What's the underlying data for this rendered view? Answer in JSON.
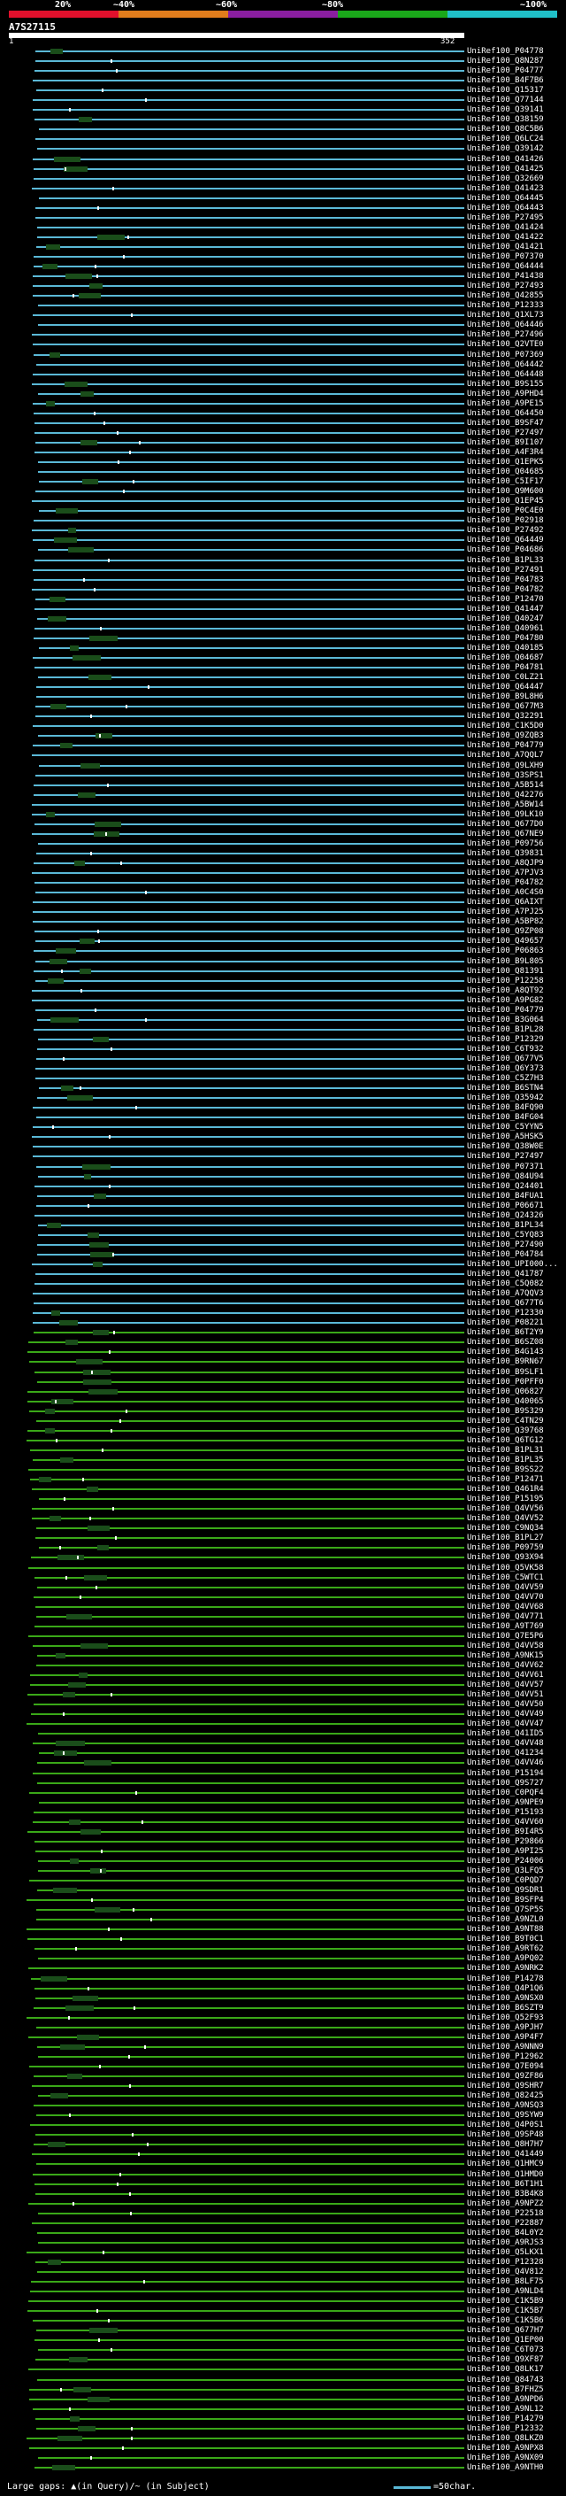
{
  "scale": {
    "ticks": [
      "20%",
      "~40%",
      "~60%",
      "~80%",
      "~100%"
    ],
    "colors": [
      "#e0102c",
      "#e07c1c",
      "#8a1ea0",
      "#1aa81a",
      "#20c0c8"
    ]
  },
  "query": {
    "id": "A7S27115",
    "start": "1",
    "end": "352"
  },
  "line_colors": {
    "cyan": "#5ab8d6",
    "green": "#3aa818",
    "dark": "#1a4d1a"
  },
  "hits": [
    {
      "id": "UniRef100_P04778",
      "c": "cyan"
    },
    {
      "id": "UniRef100_Q8N287",
      "c": "cyan"
    },
    {
      "id": "UniRef100_P04777",
      "c": "cyan"
    },
    {
      "id": "UniRef100_B4F7B6",
      "c": "cyan"
    },
    {
      "id": "UniRef100_Q15317",
      "c": "cyan"
    },
    {
      "id": "UniRef100_Q77144",
      "c": "cyan"
    },
    {
      "id": "UniRef100_Q39141",
      "c": "cyan"
    },
    {
      "id": "UniRef100_Q38159",
      "c": "cyan"
    },
    {
      "id": "UniRef100_Q8C5B6",
      "c": "cyan"
    },
    {
      "id": "UniRef100_Q6LC24",
      "c": "cyan"
    },
    {
      "id": "UniRef100_Q39142",
      "c": "cyan"
    },
    {
      "id": "UniRef100_Q41426",
      "c": "cyan"
    },
    {
      "id": "UniRef100_Q41425",
      "c": "cyan"
    },
    {
      "id": "UniRef100_Q32669",
      "c": "cyan"
    },
    {
      "id": "UniRef100_Q41423",
      "c": "cyan"
    },
    {
      "id": "UniRef100_Q64445",
      "c": "cyan"
    },
    {
      "id": "UniRef100_Q64443",
      "c": "cyan"
    },
    {
      "id": "UniRef100_P27495",
      "c": "cyan"
    },
    {
      "id": "UniRef100_Q41424",
      "c": "cyan"
    },
    {
      "id": "UniRef100_Q41422",
      "c": "cyan"
    },
    {
      "id": "UniRef100_Q41421",
      "c": "cyan"
    },
    {
      "id": "UniRef100_P07370",
      "c": "cyan"
    },
    {
      "id": "UniRef100_Q64444",
      "c": "cyan"
    },
    {
      "id": "UniRef100_P41438",
      "c": "cyan"
    },
    {
      "id": "UniRef100_P27493",
      "c": "cyan"
    },
    {
      "id": "UniRef100_Q42855",
      "c": "cyan"
    },
    {
      "id": "UniRef100_P12333",
      "c": "cyan"
    },
    {
      "id": "UniRef100_Q1XL73",
      "c": "cyan"
    },
    {
      "id": "UniRef100_Q64446",
      "c": "cyan"
    },
    {
      "id": "UniRef100_P27496",
      "c": "cyan"
    },
    {
      "id": "UniRef100_Q2VTE0",
      "c": "cyan"
    },
    {
      "id": "UniRef100_P07369",
      "c": "cyan"
    },
    {
      "id": "UniRef100_Q64442",
      "c": "cyan"
    },
    {
      "id": "UniRef100_Q64448",
      "c": "cyan"
    },
    {
      "id": "UniRef100_B9S155",
      "c": "cyan"
    },
    {
      "id": "UniRef100_A9PHD4",
      "c": "cyan"
    },
    {
      "id": "UniRef100_A9PE15",
      "c": "cyan"
    },
    {
      "id": "UniRef100_Q64450",
      "c": "cyan"
    },
    {
      "id": "UniRef100_B9SF47",
      "c": "cyan"
    },
    {
      "id": "UniRef100_P27497",
      "c": "cyan"
    },
    {
      "id": "UniRef100_B9I107",
      "c": "cyan"
    },
    {
      "id": "UniRef100_A4F3R4",
      "c": "cyan"
    },
    {
      "id": "UniRef100_Q1EPK5",
      "c": "cyan"
    },
    {
      "id": "UniRef100_Q04685",
      "c": "cyan"
    },
    {
      "id": "UniRef100_C5IF17",
      "c": "cyan"
    },
    {
      "id": "UniRef100_Q9M600",
      "c": "cyan"
    },
    {
      "id": "UniRef100_Q1EP45",
      "c": "cyan"
    },
    {
      "id": "UniRef100_P0C4E0",
      "c": "cyan"
    },
    {
      "id": "UniRef100_P02918",
      "c": "cyan"
    },
    {
      "id": "UniRef100_P27492",
      "c": "cyan"
    },
    {
      "id": "UniRef100_Q64449",
      "c": "cyan"
    },
    {
      "id": "UniRef100_P04686",
      "c": "cyan"
    },
    {
      "id": "UniRef100_B1PL33",
      "c": "cyan"
    },
    {
      "id": "UniRef100_P27491",
      "c": "cyan"
    },
    {
      "id": "UniRef100_P04783",
      "c": "cyan"
    },
    {
      "id": "UniRef100_P04782",
      "c": "cyan"
    },
    {
      "id": "UniRef100_P12470",
      "c": "cyan"
    },
    {
      "id": "UniRef100_Q41447",
      "c": "cyan"
    },
    {
      "id": "UniRef100_Q40247",
      "c": "cyan"
    },
    {
      "id": "UniRef100_Q40961",
      "c": "cyan"
    },
    {
      "id": "UniRef100_P04780",
      "c": "cyan"
    },
    {
      "id": "UniRef100_Q40185",
      "c": "cyan"
    },
    {
      "id": "UniRef100_Q04687",
      "c": "cyan"
    },
    {
      "id": "UniRef100_P04781",
      "c": "cyan"
    },
    {
      "id": "UniRef100_C0LZ21",
      "c": "cyan"
    },
    {
      "id": "UniRef100_Q64447",
      "c": "cyan"
    },
    {
      "id": "UniRef100_B9L8H6",
      "c": "cyan"
    },
    {
      "id": "UniRef100_Q677M3",
      "c": "cyan"
    },
    {
      "id": "UniRef100_Q32291",
      "c": "cyan"
    },
    {
      "id": "UniRef100_C1K5D0",
      "c": "cyan"
    },
    {
      "id": "UniRef100_Q9ZQB3",
      "c": "cyan"
    },
    {
      "id": "UniRef100_P04779",
      "c": "cyan"
    },
    {
      "id": "UniRef100_A7QQL7",
      "c": "cyan"
    },
    {
      "id": "UniRef100_Q9LXH9",
      "c": "cyan"
    },
    {
      "id": "UniRef100_Q3SPS1",
      "c": "cyan"
    },
    {
      "id": "UniRef100_A5B514",
      "c": "cyan"
    },
    {
      "id": "UniRef100_Q42276",
      "c": "cyan"
    },
    {
      "id": "UniRef100_A5BW14",
      "c": "cyan"
    },
    {
      "id": "UniRef100_Q9LK10",
      "c": "cyan"
    },
    {
      "id": "UniRef100_Q677D0",
      "c": "cyan"
    },
    {
      "id": "UniRef100_Q67NE9",
      "c": "cyan"
    },
    {
      "id": "UniRef100_P09756",
      "c": "cyan"
    },
    {
      "id": "UniRef100_Q39831",
      "c": "cyan"
    },
    {
      "id": "UniRef100_A8QJP9",
      "c": "cyan"
    },
    {
      "id": "UniRef100_A7PJV3",
      "c": "cyan"
    },
    {
      "id": "UniRef100_P04782",
      "c": "cyan"
    },
    {
      "id": "UniRef100_A0C4S0",
      "c": "cyan"
    },
    {
      "id": "UniRef100_Q6AIXT",
      "c": "cyan"
    },
    {
      "id": "UniRef100_A7PJ25",
      "c": "cyan"
    },
    {
      "id": "UniRef100_A5BP82",
      "c": "cyan"
    },
    {
      "id": "UniRef100_Q9ZP08",
      "c": "cyan"
    },
    {
      "id": "UniRef100_Q49657",
      "c": "cyan"
    },
    {
      "id": "UniRef100_P06863",
      "c": "cyan"
    },
    {
      "id": "UniRef100_B9L805",
      "c": "cyan"
    },
    {
      "id": "UniRef100_Q81391",
      "c": "cyan"
    },
    {
      "id": "UniRef100_P12258",
      "c": "cyan"
    },
    {
      "id": "UniRef100_A8QT92",
      "c": "cyan"
    },
    {
      "id": "UniRef100_A9PG82",
      "c": "cyan"
    },
    {
      "id": "UniRef100_P04779",
      "c": "cyan"
    },
    {
      "id": "UniRef100_B3G064",
      "c": "cyan"
    },
    {
      "id": "UniRef100_B1PL28",
      "c": "cyan"
    },
    {
      "id": "UniRef100_P12329",
      "c": "cyan"
    },
    {
      "id": "UniRef100_C6T932",
      "c": "cyan"
    },
    {
      "id": "UniRef100_Q677V5",
      "c": "cyan"
    },
    {
      "id": "UniRef100_Q6Y373",
      "c": "cyan"
    },
    {
      "id": "UniRef100_C5Z7H3",
      "c": "cyan"
    },
    {
      "id": "UniRef100_B6STN4",
      "c": "cyan"
    },
    {
      "id": "UniRef100_Q35942",
      "c": "cyan"
    },
    {
      "id": "UniRef100_B4FQ90",
      "c": "cyan"
    },
    {
      "id": "UniRef100_B4FG04",
      "c": "cyan"
    },
    {
      "id": "UniRef100_C5YYN5",
      "c": "cyan"
    },
    {
      "id": "UniRef100_A5HSK5",
      "c": "cyan"
    },
    {
      "id": "UniRef100_Q38W0E",
      "c": "cyan"
    },
    {
      "id": "UniRef100_P27497",
      "c": "cyan"
    },
    {
      "id": "UniRef100_P07371",
      "c": "cyan"
    },
    {
      "id": "UniRef100_Q84U94",
      "c": "cyan"
    },
    {
      "id": "UniRef100_Q24401",
      "c": "cyan"
    },
    {
      "id": "UniRef100_B4FUA1",
      "c": "cyan"
    },
    {
      "id": "UniRef100_P06671",
      "c": "cyan"
    },
    {
      "id": "UniRef100_Q24326",
      "c": "cyan"
    },
    {
      "id": "UniRef100_B1PL34",
      "c": "cyan"
    },
    {
      "id": "UniRef100_C5YQ83",
      "c": "cyan"
    },
    {
      "id": "UniRef100_P27490",
      "c": "cyan"
    },
    {
      "id": "UniRef100_P04784",
      "c": "cyan"
    },
    {
      "id": "UniRef100_UPI000...",
      "c": "cyan"
    },
    {
      "id": "UniRef100_Q41787",
      "c": "cyan"
    },
    {
      "id": "UniRef100_C5Q082",
      "c": "cyan"
    },
    {
      "id": "UniRef100_A7QQV3",
      "c": "cyan"
    },
    {
      "id": "UniRef100_Q677T6",
      "c": "cyan"
    },
    {
      "id": "UniRef100_P12330",
      "c": "cyan"
    },
    {
      "id": "UniRef100_P08221",
      "c": "cyan"
    },
    {
      "id": "UniRef100_B6T2Y9",
      "c": "green"
    },
    {
      "id": "UniRef100_B6SZ08",
      "c": "green"
    },
    {
      "id": "UniRef100_B4G143",
      "c": "green"
    },
    {
      "id": "UniRef100_B9RN67",
      "c": "green"
    },
    {
      "id": "UniRef100_B9SLF1",
      "c": "green"
    },
    {
      "id": "UniRef100_P0PFF0",
      "c": "green"
    },
    {
      "id": "UniRef100_Q06827",
      "c": "green"
    },
    {
      "id": "UniRef100_Q40065",
      "c": "green"
    },
    {
      "id": "UniRef100_B9S329",
      "c": "green"
    },
    {
      "id": "UniRef100_C4TN29",
      "c": "green"
    },
    {
      "id": "UniRef100_Q39768",
      "c": "green"
    },
    {
      "id": "UniRef100_Q6TG12",
      "c": "green"
    },
    {
      "id": "UniRef100_B1PL31",
      "c": "green"
    },
    {
      "id": "UniRef100_B1PL35",
      "c": "green"
    },
    {
      "id": "UniRef100_B9SS22",
      "c": "green"
    },
    {
      "id": "UniRef100_P12471",
      "c": "green"
    },
    {
      "id": "UniRef100_Q461R4",
      "c": "green"
    },
    {
      "id": "UniRef100_P15195",
      "c": "green"
    },
    {
      "id": "UniRef100_Q4VV56",
      "c": "green"
    },
    {
      "id": "UniRef100_Q4VV52",
      "c": "green"
    },
    {
      "id": "UniRef100_C9NQ34",
      "c": "green"
    },
    {
      "id": "UniRef100_B1PL27",
      "c": "green"
    },
    {
      "id": "UniRef100_P09759",
      "c": "green"
    },
    {
      "id": "UniRef100_Q93X94",
      "c": "green"
    },
    {
      "id": "UniRef100_Q5VK58",
      "c": "green"
    },
    {
      "id": "UniRef100_C5WTC1",
      "c": "green"
    },
    {
      "id": "UniRef100_Q4VV59",
      "c": "green"
    },
    {
      "id": "UniRef100_Q4VV70",
      "c": "green"
    },
    {
      "id": "UniRef100_Q4VV68",
      "c": "green"
    },
    {
      "id": "UniRef100_Q4V771",
      "c": "green"
    },
    {
      "id": "UniRef100_A9T769",
      "c": "green"
    },
    {
      "id": "UniRef100_Q7E5P6",
      "c": "green"
    },
    {
      "id": "UniRef100_Q4VV58",
      "c": "green"
    },
    {
      "id": "UniRef100_A9NK15",
      "c": "green"
    },
    {
      "id": "UniRef100_Q4VV62",
      "c": "green"
    },
    {
      "id": "UniRef100_Q4VV61",
      "c": "green"
    },
    {
      "id": "UniRef100_Q4VV57",
      "c": "green"
    },
    {
      "id": "UniRef100_Q4VV51",
      "c": "green"
    },
    {
      "id": "UniRef100_Q4VV50",
      "c": "green"
    },
    {
      "id": "UniRef100_Q4VV49",
      "c": "green"
    },
    {
      "id": "UniRef100_Q4VV47",
      "c": "green"
    },
    {
      "id": "UniRef100_Q41ID5",
      "c": "green"
    },
    {
      "id": "UniRef100_Q4VV48",
      "c": "green"
    },
    {
      "id": "UniRef100_Q41234",
      "c": "green"
    },
    {
      "id": "UniRef100_Q4VV46",
      "c": "green"
    },
    {
      "id": "UniRef100_P15194",
      "c": "green"
    },
    {
      "id": "UniRef100_Q9S727",
      "c": "green"
    },
    {
      "id": "UniRef100_C0PQF4",
      "c": "green"
    },
    {
      "id": "UniRef100_A9NPE9",
      "c": "green"
    },
    {
      "id": "UniRef100_P15193",
      "c": "green"
    },
    {
      "id": "UniRef100_Q4VV60",
      "c": "green"
    },
    {
      "id": "UniRef100_B9I4R5",
      "c": "green"
    },
    {
      "id": "UniRef100_P29866",
      "c": "green"
    },
    {
      "id": "UniRef100_A9PI25",
      "c": "green"
    },
    {
      "id": "UniRef100_P24006",
      "c": "green"
    },
    {
      "id": "UniRef100_Q3LFQ5",
      "c": "green"
    },
    {
      "id": "UniRef100_C0PQD7",
      "c": "green"
    },
    {
      "id": "UniRef100_Q9SDR1",
      "c": "green"
    },
    {
      "id": "UniRef100_B9SFP4",
      "c": "green"
    },
    {
      "id": "UniRef100_Q7SP5S",
      "c": "green"
    },
    {
      "id": "UniRef100_A9NZL0",
      "c": "green"
    },
    {
      "id": "UniRef100_A9NT88",
      "c": "green"
    },
    {
      "id": "UniRef100_B9T0C1",
      "c": "green"
    },
    {
      "id": "UniRef100_A9RT62",
      "c": "green"
    },
    {
      "id": "UniRef100_A9PQ02",
      "c": "green"
    },
    {
      "id": "UniRef100_A9NRK2",
      "c": "green"
    },
    {
      "id": "UniRef100_P14278",
      "c": "green"
    },
    {
      "id": "UniRef100_Q4P1Q6",
      "c": "green"
    },
    {
      "id": "UniRef100_A9NSX0",
      "c": "green"
    },
    {
      "id": "UniRef100_B6SZT9",
      "c": "green"
    },
    {
      "id": "UniRef100_Q52F93",
      "c": "green"
    },
    {
      "id": "UniRef100_A9PJH7",
      "c": "green"
    },
    {
      "id": "UniRef100_A9P4F7",
      "c": "green"
    },
    {
      "id": "UniRef100_A9NNN9",
      "c": "green"
    },
    {
      "id": "UniRef100_P12962",
      "c": "green"
    },
    {
      "id": "UniRef100_Q7E094",
      "c": "green"
    },
    {
      "id": "UniRef100_Q9ZF86",
      "c": "green"
    },
    {
      "id": "UniRef100_Q9SHR7",
      "c": "green"
    },
    {
      "id": "UniRef100_Q82425",
      "c": "green"
    },
    {
      "id": "UniRef100_A9NSQ3",
      "c": "green"
    },
    {
      "id": "UniRef100_Q9SYW9",
      "c": "green"
    },
    {
      "id": "UniRef100_Q4P0S1",
      "c": "green"
    },
    {
      "id": "UniRef100_Q9SP48",
      "c": "green"
    },
    {
      "id": "UniRef100_Q8H7H7",
      "c": "green"
    },
    {
      "id": "UniRef100_Q41449",
      "c": "green"
    },
    {
      "id": "UniRef100_Q1HMC9",
      "c": "green"
    },
    {
      "id": "UniRef100_Q1HMD0",
      "c": "green"
    },
    {
      "id": "UniRef100_B6T1H1",
      "c": "green"
    },
    {
      "id": "UniRef100_B3B4K8",
      "c": "green"
    },
    {
      "id": "UniRef100_A9NPZ2",
      "c": "green"
    },
    {
      "id": "UniRef100_P22518",
      "c": "green"
    },
    {
      "id": "UniRef100_P22887",
      "c": "green"
    },
    {
      "id": "UniRef100_B4L0Y2",
      "c": "green"
    },
    {
      "id": "UniRef100_A9RJS3",
      "c": "green"
    },
    {
      "id": "UniRef100_Q5LKX1",
      "c": "green"
    },
    {
      "id": "UniRef100_P12328",
      "c": "green"
    },
    {
      "id": "UniRef100_Q4V812",
      "c": "green"
    },
    {
      "id": "UniRef100_B8LF75",
      "c": "green"
    },
    {
      "id": "UniRef100_A9NLD4",
      "c": "green"
    },
    {
      "id": "UniRef100_C1K5B9",
      "c": "green"
    },
    {
      "id": "UniRef100_C1K5B7",
      "c": "green"
    },
    {
      "id": "UniRef100_C1K5B6",
      "c": "green"
    },
    {
      "id": "UniRef100_Q677H7",
      "c": "green"
    },
    {
      "id": "UniRef100_Q1EP00",
      "c": "green"
    },
    {
      "id": "UniRef100_C6T073",
      "c": "green"
    },
    {
      "id": "UniRef100_Q9XF87",
      "c": "green"
    },
    {
      "id": "UniRef100_Q8LK17",
      "c": "green"
    },
    {
      "id": "UniRef100_Q84743",
      "c": "green"
    },
    {
      "id": "UniRef100_B7FHZ5",
      "c": "green"
    },
    {
      "id": "UniRef100_A9NPD6",
      "c": "green"
    },
    {
      "id": "UniRef100_A9NL12",
      "c": "green"
    },
    {
      "id": "UniRef100_P14279",
      "c": "green"
    },
    {
      "id": "UniRef100_P12332",
      "c": "green"
    },
    {
      "id": "UniRef100_Q8LKZ0",
      "c": "green"
    },
    {
      "id": "UniRef100_A9NPX8",
      "c": "green"
    },
    {
      "id": "UniRef100_A9NX09",
      "c": "green"
    },
    {
      "id": "UniRef100_A9NTH0",
      "c": "green"
    }
  ],
  "footer": {
    "text": "Large gaps: ▲(in Query)/~ (in Subject)",
    "legend": "=50char."
  }
}
